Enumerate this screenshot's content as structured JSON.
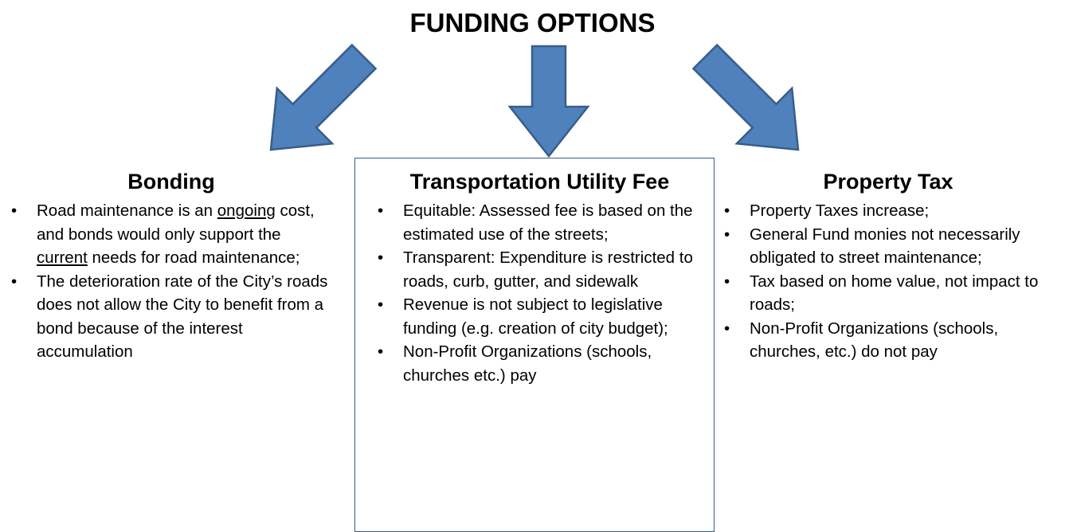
{
  "title": "FUNDING OPTIONS",
  "columns": [
    {
      "heading": "Bonding",
      "bullets": [
        [
          "Road maintenance is an ",
          "ongoing",
          " cost, and bonds would only support the ",
          "current",
          " needs for road maintenance;"
        ],
        [
          "The deterioration rate of the City’s roads does not allow the City to benefit from a bond because of the interest accumulation"
        ]
      ]
    },
    {
      "heading": "Transportation Utility Fee",
      "bullets": [
        [
          "Equitable:  Assessed fee is based on the estimated use of the streets;"
        ],
        [
          "Transparent: Expenditure is restricted to roads, curb, gutter, and sidewalk"
        ],
        [
          "Revenue is not subject to legislative funding (e.g. creation of city budget);"
        ],
        [
          "Non-Profit Organizations (schools, churches etc.) pay"
        ]
      ]
    },
    {
      "heading": "Property Tax",
      "bullets": [
        [
          "Property Taxes increase;"
        ],
        [
          "General Fund monies not necessarily obligated to street maintenance;"
        ],
        [
          "Tax based on home value, not impact to roads;"
        ],
        [
          "Non-Profit Organizations (schools, churches, etc.) do not pay"
        ]
      ]
    }
  ]
}
